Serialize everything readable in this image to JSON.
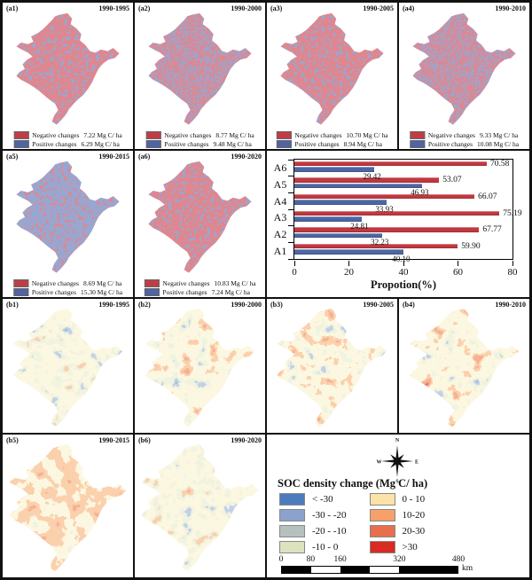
{
  "a_panels": [
    {
      "id": "(a1)",
      "period": "1990-1995",
      "negative": {
        "label": "Negative  changes",
        "value": "7.22 Mg C/ ha"
      },
      "positive": {
        "label": "Positive  changes",
        "value": "6.29 Mg C/ ha"
      }
    },
    {
      "id": "(a2)",
      "period": "1990-2000",
      "negative": {
        "label": "Negative  changes",
        "value": "8.77 Mg C/ ha"
      },
      "positive": {
        "label": "Positive  changes",
        "value": "9.48 Mg C/ ha"
      }
    },
    {
      "id": "(a3)",
      "period": "1990-2005",
      "negative": {
        "label": "Negative  changes",
        "value": "10.70 Mg C/ ha"
      },
      "positive": {
        "label": "Positive  changes",
        "value": "8.94 Mg C/ ha"
      }
    },
    {
      "id": "(a4)",
      "period": "1990-2010",
      "negative": {
        "label": "Negative  changes",
        "value": "9.33 Mg C/ ha"
      },
      "positive": {
        "label": "Positive  changes",
        "value": "10.08 Mg C/ ha"
      }
    },
    {
      "id": "(a5)",
      "period": "1990-2015",
      "negative": {
        "label": "Negative  changes",
        "value": "8.69 Mg C/ ha"
      },
      "positive": {
        "label": "Positive  changes",
        "value": "15.30 Mg C/ ha"
      }
    },
    {
      "id": "(a6)",
      "period": "1990-2020",
      "negative": {
        "label": "Negative  changes",
        "value": "10.83 Mg C/ ha"
      },
      "positive": {
        "label": "Positive  changes",
        "value": "7.24 Mg C/ ha"
      }
    }
  ],
  "b_panels": [
    {
      "id": "(b1)",
      "period": "1990-1995"
    },
    {
      "id": "(b2)",
      "period": "1990-2000"
    },
    {
      "id": "(b3)",
      "period": "1990-2005"
    },
    {
      "id": "(b4)",
      "period": "1990-2010"
    },
    {
      "id": "(b5)",
      "period": "1990-2015"
    },
    {
      "id": "(b6)",
      "period": "1990-2020"
    }
  ],
  "map_palette_a": {
    "negative": "#bf3e45",
    "positive": "#5063a3"
  },
  "chart_data": {
    "type": "bar",
    "orientation": "horizontal",
    "categories": [
      "A1",
      "A2",
      "A3",
      "A4",
      "A5",
      "A6"
    ],
    "series": [
      {
        "name": "Negative changes",
        "color": "#c2383f",
        "values": [
          59.9,
          67.77,
          75.19,
          66.07,
          53.07,
          70.58
        ],
        "labels": [
          "59.90",
          "67.77",
          "75.19",
          "66.07",
          "53.07",
          "70.58"
        ]
      },
      {
        "name": "Positive changes",
        "color": "#4d66a3",
        "values": [
          40.1,
          32.23,
          24.81,
          33.93,
          46.93,
          29.42
        ],
        "labels": [
          "40.10",
          "32.23",
          "24.81",
          "33.93",
          "46.93",
          "29.42"
        ]
      }
    ],
    "xlabel": "Propotion(%)",
    "xticks": [
      0,
      20,
      40,
      60,
      80
    ],
    "xtick_labels": [
      "0",
      "20",
      "40",
      "60",
      "80"
    ],
    "xlim": [
      0,
      80
    ],
    "grid": false,
    "legend": "none"
  },
  "soc_legend": {
    "title": "SOC density change (Mg C/ ha)",
    "items": [
      {
        "label": "< -30",
        "color": "#4c7cbe"
      },
      {
        "label": "-30 - -20",
        "color": "#8ba2cc"
      },
      {
        "label": "-20 - -10",
        "color": "#b6c0bd"
      },
      {
        "label": "-10 - 0",
        "color": "#dde2be"
      },
      {
        "label": "0 - 10",
        "color": "#fce3a8"
      },
      {
        "label": "10-20",
        "color": "#f5a169"
      },
      {
        "label": "20-30",
        "color": "#e76f4b"
      },
      {
        "label": ">30",
        "color": "#d72b23"
      }
    ]
  },
  "scale_bar": {
    "tick_labels": [
      "0",
      "80",
      "160",
      "320",
      "480"
    ],
    "unit": "km"
  },
  "compass": {
    "n": "N",
    "e": "E",
    "s": "S",
    "w": "W"
  }
}
